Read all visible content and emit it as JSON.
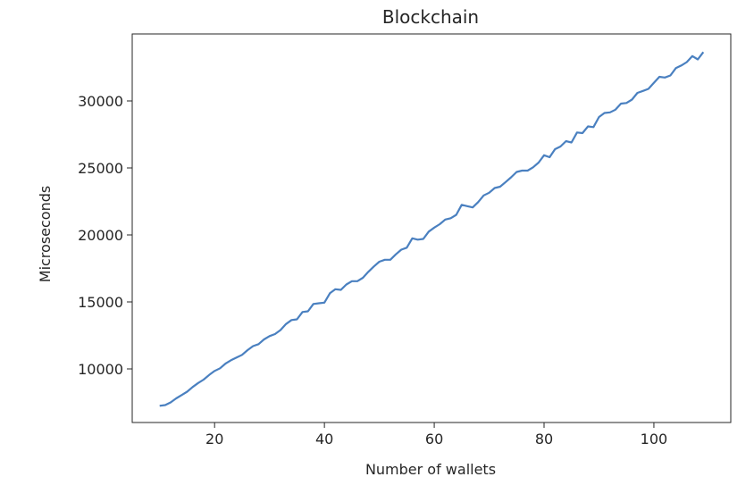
{
  "chart_data": {
    "type": "line",
    "title": "Blockchain",
    "xlabel": "Number of wallets",
    "ylabel": "Microseconds",
    "xlim": [
      5,
      114
    ],
    "ylim": [
      6000,
      35000
    ],
    "xticks": [
      20,
      40,
      60,
      80,
      100
    ],
    "xtick_labels": [
      "20",
      "40",
      "60",
      "80",
      "100"
    ],
    "yticks": [
      10000,
      15000,
      20000,
      25000,
      30000
    ],
    "ytick_labels": [
      "10000",
      "15000",
      "20000",
      "25000",
      "30000"
    ],
    "grid": false,
    "series": [
      {
        "color": "#4a80c0",
        "x": [
          10,
          11,
          12,
          13,
          14,
          15,
          16,
          17,
          18,
          19,
          20,
          21,
          22,
          23,
          24,
          25,
          26,
          27,
          28,
          29,
          30,
          31,
          32,
          33,
          34,
          35,
          36,
          37,
          38,
          39,
          40,
          41,
          42,
          43,
          44,
          45,
          46,
          47,
          48,
          49,
          50,
          51,
          52,
          53,
          54,
          55,
          56,
          57,
          58,
          59,
          60,
          61,
          62,
          63,
          64,
          65,
          66,
          67,
          68,
          69,
          70,
          71,
          72,
          73,
          74,
          75,
          76,
          77,
          78,
          79,
          80,
          81,
          82,
          83,
          84,
          85,
          86,
          87,
          88,
          89,
          90,
          91,
          92,
          93,
          94,
          95,
          96,
          97,
          98,
          99,
          100,
          101,
          102,
          103,
          104,
          105,
          106,
          107,
          108,
          109
        ],
        "values": [
          7250,
          7300,
          7500,
          7800,
          8050,
          8300,
          8650,
          8950,
          9200,
          9550,
          9850,
          10050,
          10400,
          10650,
          10850,
          11050,
          11400,
          11700,
          11850,
          12200,
          12450,
          12600,
          12900,
          13350,
          13650,
          13700,
          14250,
          14300,
          14850,
          14900,
          14950,
          15650,
          15950,
          15900,
          16300,
          16550,
          16550,
          16800,
          17250,
          17650,
          18000,
          18150,
          18150,
          18550,
          18900,
          19050,
          19750,
          19650,
          19700,
          20250,
          20550,
          20800,
          21150,
          21250,
          21500,
          22250,
          22150,
          22050,
          22450,
          22950,
          23150,
          23500,
          23600,
          23950,
          24300,
          24700,
          24800,
          24800,
          25050,
          25400,
          25950,
          25800,
          26400,
          26600,
          27000,
          26900,
          27650,
          27600,
          28100,
          28050,
          28800,
          29100,
          29150,
          29350,
          29800,
          29850,
          30100,
          30600,
          30750,
          30900,
          31350,
          31800,
          31750,
          31900,
          32450,
          32650,
          32900,
          33350,
          33100,
          33650
        ]
      }
    ]
  }
}
